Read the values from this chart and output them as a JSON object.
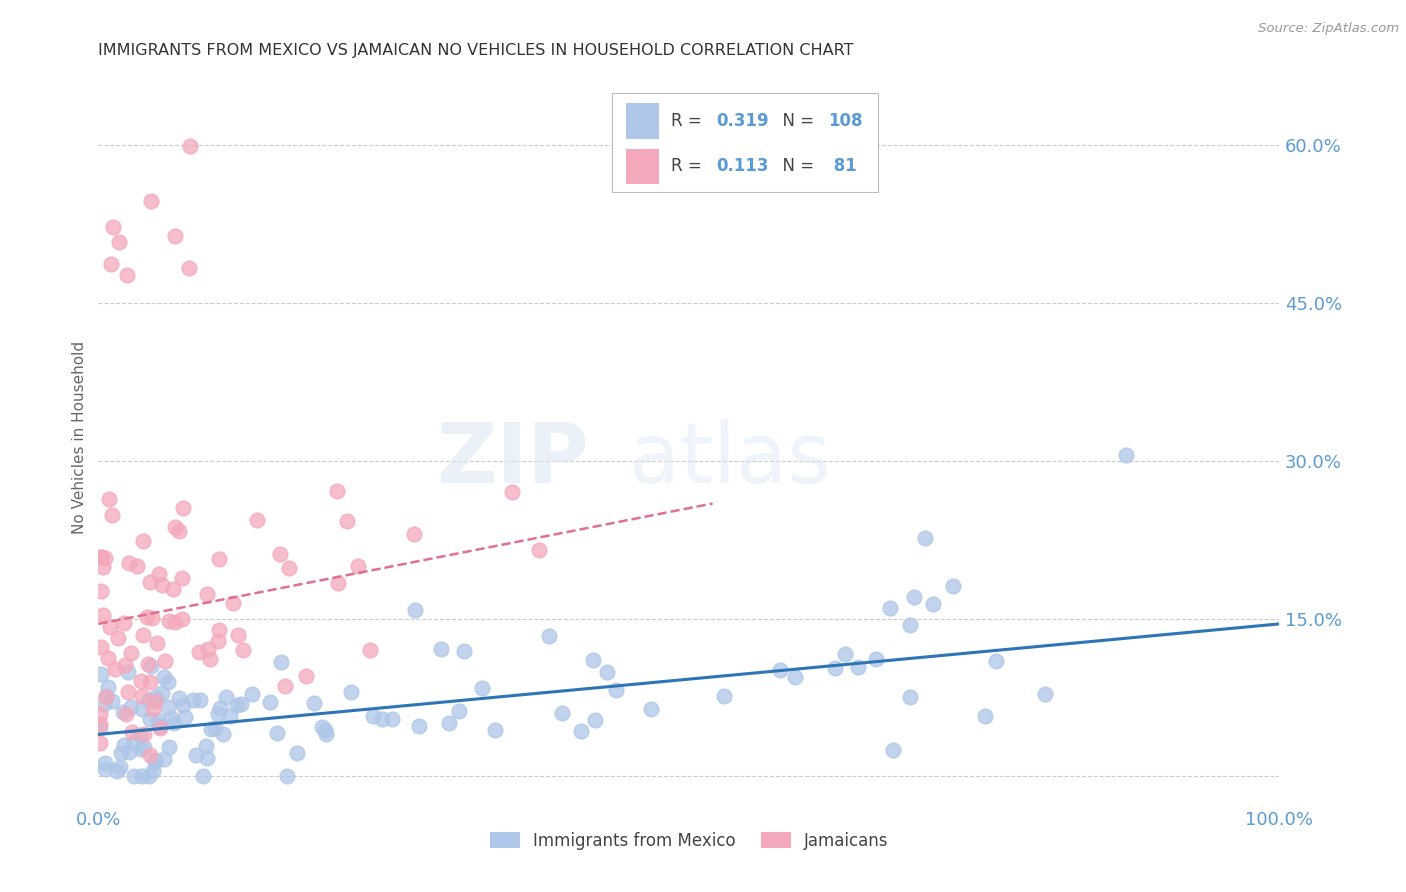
{
  "title": "IMMIGRANTS FROM MEXICO VS JAMAICAN NO VEHICLES IN HOUSEHOLD CORRELATION CHART",
  "source": "Source: ZipAtlas.com",
  "ylabel": "No Vehicles in Household",
  "yticks": [
    0.0,
    0.15,
    0.3,
    0.45,
    0.6
  ],
  "xlim": [
    0.0,
    1.0
  ],
  "ylim": [
    -0.025,
    0.67
  ],
  "legend_entries": [
    {
      "label": "Immigrants from Mexico",
      "color": "#aec6e8",
      "R": "0.319",
      "N": "108"
    },
    {
      "label": "Jamaicans",
      "color": "#f4a8bb",
      "R": "0.113",
      "N": "81"
    }
  ],
  "watermark_zip": "ZIP",
  "watermark_atlas": "atlas",
  "background_color": "#ffffff",
  "grid_color": "#cccccc",
  "title_color": "#333333",
  "axis_label_color": "#5b9bd5",
  "scatter_blue_color": "#aec6e8",
  "scatter_pink_color": "#f4a8bb",
  "trend_blue_color": "#2e75b6",
  "trend_pink_color": "#e07090",
  "trend_pink_style": "--"
}
